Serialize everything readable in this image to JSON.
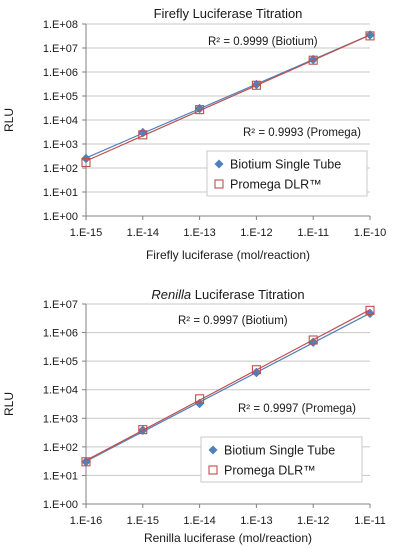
{
  "colors": {
    "biotium": "#4f81bd",
    "promega": "#c0504d",
    "axis": "#808080",
    "grid": "#c8c8c8",
    "legend_border": "#c8c8c8"
  },
  "chart_data": [
    {
      "type": "scatter",
      "title_prefix": "",
      "title_em": "",
      "title_suffix": "Firefly Luciferase Titration",
      "xlabel": "Firefly luciferase (mol/reaction)",
      "ylabel": "RLU",
      "x_log": true,
      "y_log": true,
      "xlim": [
        1e-15,
        1e-10
      ],
      "ylim": [
        1,
        100000000
      ],
      "x_ticks": [
        "1.E-15",
        "1.E-14",
        "1.E-13",
        "1.E-12",
        "1.E-11",
        "1.E-10"
      ],
      "y_ticks": [
        "1.E+00",
        "1.E+01",
        "1.E+02",
        "1.E+03",
        "1.E+04",
        "1.E+05",
        "1.E+06",
        "1.E+07",
        "1.E+08"
      ],
      "grid": "horizontal",
      "legend_position": "bottom-right",
      "series": [
        {
          "name": "Biotium Single Tube",
          "marker": "diamond",
          "x": [
            1e-15,
            1e-14,
            1e-13,
            1e-12,
            1e-11,
            1e-10
          ],
          "y": [
            250,
            3000,
            30000,
            300000,
            3300000,
            35000000
          ],
          "r2_label": "R² = 0.9999 (Biotium)"
        },
        {
          "name": "Promega DLR™",
          "marker": "square",
          "x": [
            1e-15,
            1e-14,
            1e-13,
            1e-12,
            1e-11,
            1e-10
          ],
          "y": [
            170,
            2400,
            27000,
            280000,
            3100000,
            32000000
          ],
          "r2_label": "R² = 0.9993 (Promega)"
        }
      ]
    },
    {
      "type": "scatter",
      "title_prefix": "",
      "title_em": "Renilla",
      "title_suffix": " Luciferase Titration",
      "xlabel": "Renilla luciferase (mol/reaction)",
      "ylabel": "RLU",
      "x_log": true,
      "y_log": true,
      "xlim": [
        1e-16,
        1e-11
      ],
      "ylim": [
        1,
        10000000
      ],
      "x_ticks": [
        "1.E-16",
        "1.E-15",
        "1.E-14",
        "1.E-13",
        "1.E-12",
        "1.E-11"
      ],
      "y_ticks": [
        "1.E+00",
        "1.E+01",
        "1.E+02",
        "1.E+03",
        "1.E+04",
        "1.E+05",
        "1.E+06",
        "1.E+07"
      ],
      "grid": "horizontal",
      "legend_position": "bottom-right",
      "series": [
        {
          "name": "Biotium Single Tube",
          "marker": "diamond",
          "x": [
            1e-16,
            1e-15,
            1e-14,
            1e-13,
            1e-12,
            1e-11
          ],
          "y": [
            30,
            380,
            3300,
            40000,
            460000,
            4700000
          ],
          "r2_label": "R² = 0.9997 (Biotium)"
        },
        {
          "name": "Promega DLR™",
          "marker": "square",
          "x": [
            1e-16,
            1e-15,
            1e-14,
            1e-13,
            1e-12,
            1e-11
          ],
          "y": [
            30,
            400,
            4800,
            50000,
            550000,
            6000000
          ],
          "r2_label": "R² = 0.9997 (Promega)"
        }
      ]
    }
  ]
}
